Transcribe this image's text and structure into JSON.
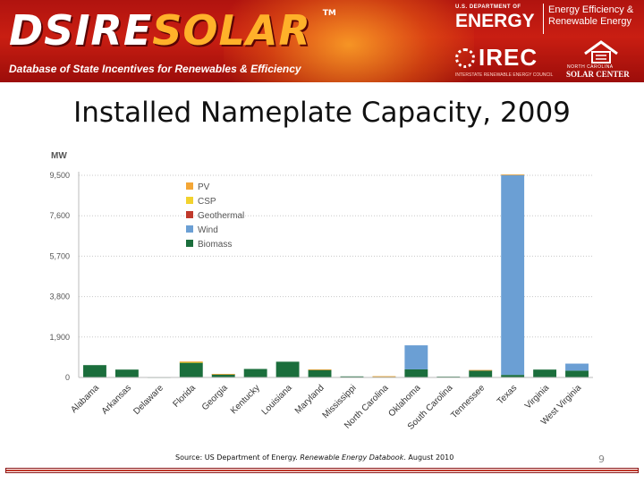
{
  "header": {
    "logo_part1": "DSIRE",
    "logo_part2": "SOLAR",
    "logo_tm": "TM",
    "tagline": "Database of State Incentives for Renewables & Efficiency",
    "doe_sub": "U.S. DEPARTMENT OF",
    "doe_name": "ENERGY",
    "doe_ee_line1": "Energy Efficiency &",
    "doe_ee_line2": "Renewable Energy",
    "irec_name": "IREC",
    "irec_sub": "INTERSTATE RENEWABLE ENERGY COUNCIL",
    "ncsc_line1": "NORTH CAROLINA",
    "ncsc_line2": "SOLAR CENTER"
  },
  "slide": {
    "title": "Installed Nameplate Capacity, 2009",
    "source_prefix": "Source: US Department of Energy. ",
    "source_title": "Renewable Energy Databook",
    "source_suffix": ". August 2010",
    "page_number": "9"
  },
  "colors": {
    "banner_red": "#c91e12",
    "PV": "#f4a636",
    "CSP": "#f2d22e",
    "Geothermal": "#c0392b",
    "Wind": "#6b9fd4",
    "Biomass": "#1b6e3c"
  },
  "chart_data": {
    "type": "bar",
    "stacked": true,
    "ylabel": "MW",
    "ylim": [
      0,
      9500
    ],
    "yticks": [
      0,
      1900,
      3800,
      5700,
      7600,
      9500
    ],
    "ytick_labels": [
      "0",
      "1,900",
      "3,800",
      "5,700",
      "7,600",
      "9,500"
    ],
    "grid": true,
    "legend_position": "top-left",
    "categories": [
      "Alabama",
      "Arkansas",
      "Delaware",
      "Florida",
      "Georgia",
      "Kentucky",
      "Louisiana",
      "Maryland",
      "Mississippi",
      "North Carolina",
      "Oklahoma",
      "South Carolina",
      "Tennessee",
      "Texas",
      "Virginia",
      "West Virginia"
    ],
    "series": [
      {
        "name": "PV",
        "values": [
          0,
          0,
          3,
          30,
          2,
          0,
          0,
          8,
          0,
          20,
          0,
          0,
          1,
          10,
          0,
          0
        ]
      },
      {
        "name": "CSP",
        "values": [
          0,
          0,
          0,
          20,
          0,
          0,
          0,
          0,
          0,
          0,
          0,
          0,
          0,
          0,
          0,
          0
        ]
      },
      {
        "name": "Geothermal",
        "values": [
          0,
          0,
          0,
          0,
          0,
          0,
          0,
          0,
          0,
          0,
          0,
          0,
          0,
          0,
          0,
          0
        ]
      },
      {
        "name": "Wind",
        "values": [
          0,
          0,
          0,
          0,
          0,
          0,
          0,
          0,
          0,
          0,
          1130,
          0,
          29,
          9410,
          0,
          330
        ]
      },
      {
        "name": "Biomass",
        "values": [
          580,
          370,
          10,
          700,
          160,
          400,
          740,
          370,
          50,
          40,
          380,
          40,
          320,
          120,
          370,
          320
        ]
      }
    ]
  }
}
